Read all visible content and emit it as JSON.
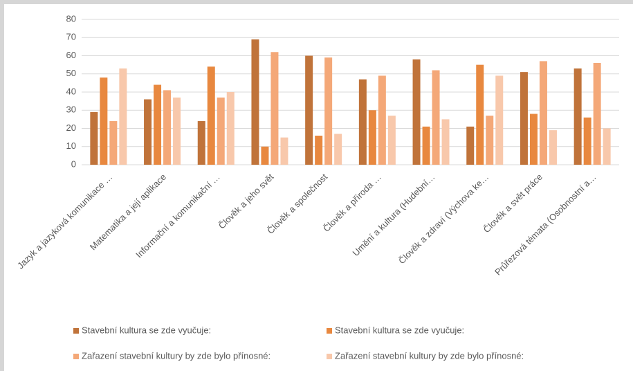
{
  "chart_data": {
    "type": "bar",
    "categories": [
      "Jazyk a jazyková komunikace …",
      "Matematika a její aplikace",
      "Informační a komunikační …",
      "Člověk a jeho svět",
      "Člověk a společnost",
      "Člověk a příroda …",
      "Umění a kultura (Hudební…",
      "Člověk a zdraví (Výchova ke…",
      "Člověk a svět práce",
      "Průřezová témata (Osobnostní a…"
    ],
    "series": [
      {
        "name": "Stavební kultura se zde vyučuje:",
        "color": "#c0733a",
        "values": [
          29,
          36,
          24,
          69,
          60,
          47,
          58,
          21,
          51,
          53
        ]
      },
      {
        "name": "Stavební kultura se zde vyučuje:",
        "color": "#e8883f",
        "values": [
          48,
          44,
          54,
          10,
          16,
          30,
          21,
          55,
          28,
          26
        ]
      },
      {
        "name": "Zařazení stavební kultury by zde bylo přínosné:",
        "color": "#f4a878",
        "values": [
          24,
          41,
          37,
          62,
          59,
          49,
          52,
          27,
          57,
          56
        ]
      },
      {
        "name": "Zařazení stavební kultury by zde bylo přínosné:",
        "color": "#f8c8ab",
        "values": [
          53,
          37,
          40,
          15,
          17,
          27,
          25,
          49,
          19,
          20
        ]
      }
    ],
    "ylim": [
      0,
      80
    ],
    "yticks": [
      0,
      10,
      20,
      30,
      40,
      50,
      60,
      70,
      80
    ],
    "grid": true,
    "legend": "bottom"
  }
}
